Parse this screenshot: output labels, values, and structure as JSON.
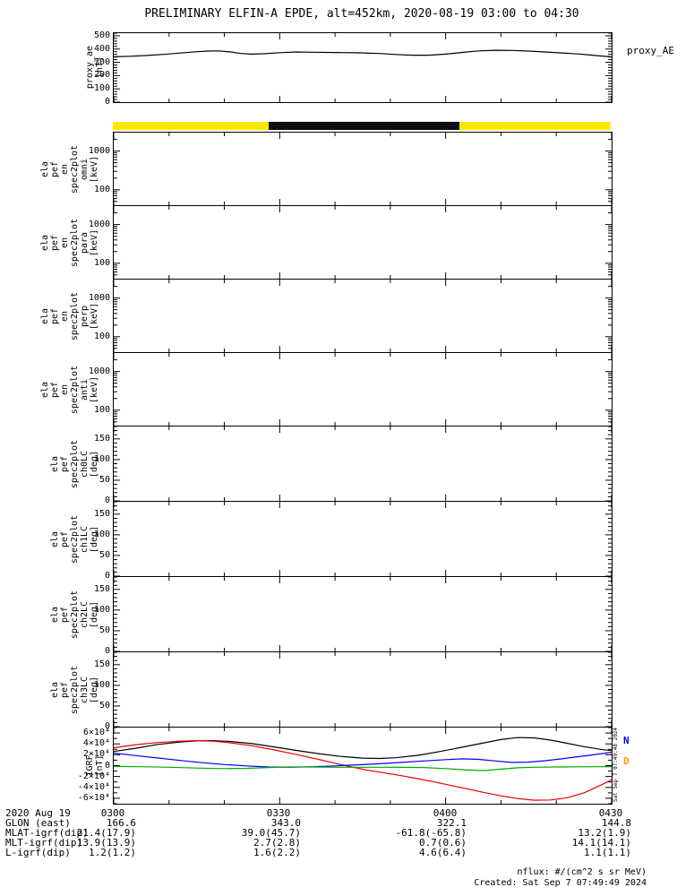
{
  "title": "PRELIMINARY ELFIN-A EPDE, alt=452km, 2020-08-19 03:00 to 04:30",
  "chart_data": {
    "type": "line",
    "title": "PRELIMINARY ELFIN-A EPDE, alt=452km, 2020-08-19 03:00 to 04:30",
    "time": {
      "tick_labels": [
        "0300",
        "0330",
        "0400",
        "0430"
      ],
      "tick_minutes": [
        0,
        30,
        60,
        90
      ],
      "minor_minutes": [
        10,
        20,
        40,
        50,
        70,
        80
      ],
      "range": [
        0,
        90
      ]
    },
    "panels": {
      "proxy": {
        "type": "line",
        "ylabel": "proxy_ae\n[nT]",
        "right_label": "proxy_AE",
        "ylim": [
          0,
          520
        ],
        "yticks": [
          {
            "v": 0,
            "label": "0"
          },
          {
            "v": 100,
            "label": "100"
          },
          {
            "v": 200,
            "label": "200"
          },
          {
            "v": 300,
            "label": "300"
          },
          {
            "v": 400,
            "label": "400"
          },
          {
            "v": 500,
            "label": "500"
          }
        ],
        "yminor_step": 20,
        "series": [
          {
            "name": "proxy_AE",
            "color": "#000000",
            "points": [
              [
                0,
                342
              ],
              [
                3,
                346
              ],
              [
                6,
                352
              ],
              [
                9,
                360
              ],
              [
                12,
                370
              ],
              [
                15,
                380
              ],
              [
                17,
                385
              ],
              [
                19,
                386
              ],
              [
                21,
                379
              ],
              [
                23,
                367
              ],
              [
                25,
                362
              ],
              [
                27,
                365
              ],
              [
                30,
                373
              ],
              [
                33,
                378
              ],
              [
                36,
                376
              ],
              [
                40,
                374
              ],
              [
                44,
                372
              ],
              [
                48,
                367
              ],
              [
                51,
                359
              ],
              [
                54,
                354
              ],
              [
                57,
                354
              ],
              [
                60,
                362
              ],
              [
                63,
                375
              ],
              [
                66,
                386
              ],
              [
                69,
                391
              ],
              [
                72,
                390
              ],
              [
                75,
                385
              ],
              [
                78,
                378
              ],
              [
                81,
                371
              ],
              [
                84,
                363
              ],
              [
                87,
                352
              ],
              [
                90,
                341
              ]
            ]
          }
        ]
      },
      "sunbar": {
        "type": "strip",
        "segments": [
          {
            "from": 0,
            "to": 28.2,
            "color": "#ffe800",
            "state": "sunlit"
          },
          {
            "from": 28.2,
            "to": 62.6,
            "color": "#0d0d14",
            "state": "shadow"
          },
          {
            "from": 62.6,
            "to": 90,
            "color": "#ffe800",
            "state": "sunlit"
          }
        ]
      },
      "omni": {
        "type": "spectrogram",
        "ylabel": "ela\npef\nen\nspec2plot\nomni\n[keV]",
        "yscale": "log",
        "ylim": [
          40,
          3000
        ],
        "yticks": [
          {
            "v": 100,
            "label": "100"
          },
          {
            "v": 1000,
            "label": "1000"
          }
        ],
        "yminor": [
          50,
          60,
          70,
          80,
          90,
          200,
          300,
          400,
          500,
          600,
          700,
          800,
          900,
          2000
        ],
        "series": []
      },
      "para": {
        "type": "spectrogram",
        "ylabel": "ela\npef\nen\nspec2plot\npara\n[keV]",
        "yscale": "log",
        "ylim": [
          40,
          3000
        ],
        "yticks": [
          {
            "v": 100,
            "label": "100"
          },
          {
            "v": 1000,
            "label": "1000"
          }
        ],
        "yminor": [
          50,
          60,
          70,
          80,
          90,
          200,
          300,
          400,
          500,
          600,
          700,
          800,
          900,
          2000
        ],
        "series": []
      },
      "perp": {
        "type": "spectrogram",
        "ylabel": "ela\npef\nen\nspec2plot\nperp\n[keV]",
        "yscale": "log",
        "ylim": [
          40,
          3000
        ],
        "yticks": [
          {
            "v": 100,
            "label": "100"
          },
          {
            "v": 1000,
            "label": "1000"
          }
        ],
        "yminor": [
          50,
          60,
          70,
          80,
          90,
          200,
          300,
          400,
          500,
          600,
          700,
          800,
          900,
          2000
        ],
        "series": []
      },
      "anti": {
        "type": "spectrogram",
        "ylabel": "ela\npef\nen\nspec2plot\nanti\n[keV]",
        "yscale": "log",
        "ylim": [
          40,
          3000
        ],
        "yticks": [
          {
            "v": 100,
            "label": "100"
          },
          {
            "v": 1000,
            "label": "1000"
          }
        ],
        "yminor": [
          50,
          60,
          70,
          80,
          90,
          200,
          300,
          400,
          500,
          600,
          700,
          800,
          900,
          2000
        ],
        "series": []
      },
      "ch0": {
        "type": "line",
        "ylabel": "ela\npef\nspec2plot\nch0LC\n[deg]",
        "ylim": [
          0,
          180
        ],
        "yticks": [
          {
            "v": 0,
            "label": "0"
          },
          {
            "v": 50,
            "label": "50"
          },
          {
            "v": 100,
            "label": "100"
          },
          {
            "v": 150,
            "label": "150"
          }
        ],
        "yminor_step": 10,
        "series": []
      },
      "ch1": {
        "type": "line",
        "ylabel": "ela\npef\nspec2plot\nch1LC\n[deg]",
        "ylim": [
          0,
          180
        ],
        "yticks": [
          {
            "v": 0,
            "label": "0"
          },
          {
            "v": 50,
            "label": "50"
          },
          {
            "v": 100,
            "label": "100"
          },
          {
            "v": 150,
            "label": "150"
          }
        ],
        "yminor_step": 10,
        "series": []
      },
      "ch2": {
        "type": "line",
        "ylabel": "ela\npef\nspec2plot\nch2LC\n[deg]",
        "ylim": [
          0,
          180
        ],
        "yticks": [
          {
            "v": 0,
            "label": "0"
          },
          {
            "v": 50,
            "label": "50"
          },
          {
            "v": 100,
            "label": "100"
          },
          {
            "v": 150,
            "label": "150"
          }
        ],
        "yminor_step": 10,
        "series": []
      },
      "ch3": {
        "type": "line",
        "ylabel": "ela\npef\nspec2plot\nch3LC\n[deg]",
        "ylim": [
          0,
          180
        ],
        "yticks": [
          {
            "v": 0,
            "label": "0"
          },
          {
            "v": 50,
            "label": "50"
          },
          {
            "v": 100,
            "label": "100"
          },
          {
            "v": 150,
            "label": "150"
          }
        ],
        "yminor_step": 10,
        "series": []
      },
      "igrf": {
        "type": "line",
        "ylabel": "IGRF\n[nT]",
        "ylim": [
          -70000,
          70000
        ],
        "yticks": [
          {
            "v": 60000,
            "label": "6×10⁴"
          },
          {
            "v": 40000,
            "label": "4×10⁴"
          },
          {
            "v": 20000,
            "label": "2×10⁴"
          },
          {
            "v": 0,
            "label": "0"
          },
          {
            "v": -20000,
            "label": "-2×10⁴"
          },
          {
            "v": -40000,
            "label": "-4×10⁴"
          },
          {
            "v": -60000,
            "label": "-6×10⁴"
          }
        ],
        "yminor_step": 10000,
        "legend": [
          {
            "label": "N",
            "color": "#0000ff"
          },
          {
            "label": "D",
            "color": "#ff9900"
          }
        ],
        "stamp": "Sat Sep  7 07:49:48 2024",
        "series": [
          {
            "name": "black",
            "color": "#000000",
            "points": [
              [
                0,
                26000
              ],
              [
                4,
                32000
              ],
              [
                8,
                39000
              ],
              [
                12,
                43500
              ],
              [
                15,
                45500
              ],
              [
                18,
                46000
              ],
              [
                21,
                44500
              ],
              [
                25,
                40500
              ],
              [
                29,
                34500
              ],
              [
                33,
                28000
              ],
              [
                37,
                22000
              ],
              [
                41,
                17000
              ],
              [
                45,
                13800
              ],
              [
                48,
                13200
              ],
              [
                51,
                14500
              ],
              [
                55,
                19000
              ],
              [
                59,
                26000
              ],
              [
                63,
                34000
              ],
              [
                67,
                42000
              ],
              [
                70,
                48000
              ],
              [
                73,
                51500
              ],
              [
                76,
                51000
              ],
              [
                79,
                47000
              ],
              [
                82,
                41000
              ],
              [
                85,
                35000
              ],
              [
                88,
                30000
              ],
              [
                90,
                27500
              ]
            ]
          },
          {
            "name": "red",
            "color": "#ee0000",
            "points": [
              [
                0,
                33000
              ],
              [
                4,
                38500
              ],
              [
                8,
                42500
              ],
              [
                12,
                45000
              ],
              [
                15,
                46000
              ],
              [
                18,
                45000
              ],
              [
                21,
                42000
              ],
              [
                25,
                36500
              ],
              [
                29,
                29000
              ],
              [
                33,
                20500
              ],
              [
                37,
                11500
              ],
              [
                40,
                4500
              ],
              [
                43,
                -2500
              ],
              [
                46,
                -8500
              ],
              [
                49,
                -13500
              ],
              [
                52,
                -18500
              ],
              [
                55,
                -24000
              ],
              [
                58,
                -30000
              ],
              [
                61,
                -36500
              ],
              [
                64,
                -43000
              ],
              [
                67,
                -49500
              ],
              [
                70,
                -55500
              ],
              [
                73,
                -60500
              ],
              [
                76,
                -63500
              ],
              [
                79,
                -63000
              ],
              [
                82,
                -59000
              ],
              [
                85,
                -50000
              ],
              [
                88,
                -36000
              ],
              [
                90,
                -26000
              ]
            ]
          },
          {
            "name": "blue",
            "color": "#0000ff",
            "points": [
              [
                0,
                23000
              ],
              [
                4,
                18500
              ],
              [
                8,
                14000
              ],
              [
                12,
                9500
              ],
              [
                16,
                5500
              ],
              [
                20,
                2000
              ],
              [
                24,
                -500
              ],
              [
                28,
                -2500
              ],
              [
                32,
                -3000
              ],
              [
                36,
                -2000
              ],
              [
                40,
                -500
              ],
              [
                44,
                1500
              ],
              [
                48,
                3500
              ],
              [
                52,
                6000
              ],
              [
                56,
                8500
              ],
              [
                60,
                11000
              ],
              [
                63,
                12500
              ],
              [
                66,
                11500
              ],
              [
                69,
                8500
              ],
              [
                72,
                6000
              ],
              [
                75,
                6500
              ],
              [
                78,
                9000
              ],
              [
                81,
                12500
              ],
              [
                84,
                16500
              ],
              [
                87,
                20500
              ],
              [
                90,
                24500
              ]
            ]
          },
          {
            "name": "green",
            "color": "#00aa00",
            "points": [
              [
                0,
                -1500
              ],
              [
                5,
                -2000
              ],
              [
                10,
                -3000
              ],
              [
                15,
                -4500
              ],
              [
                20,
                -5500
              ],
              [
                24,
                -5000
              ],
              [
                28,
                -3500
              ],
              [
                32,
                -2500
              ],
              [
                36,
                -2500
              ],
              [
                40,
                -3000
              ],
              [
                44,
                -3000
              ],
              [
                48,
                -3000
              ],
              [
                52,
                -3200
              ],
              [
                56,
                -3500
              ],
              [
                60,
                -5500
              ],
              [
                64,
                -8000
              ],
              [
                67,
                -9000
              ],
              [
                70,
                -6500
              ],
              [
                73,
                -4000
              ],
              [
                76,
                -3000
              ],
              [
                80,
                -2500
              ],
              [
                84,
                -2200
              ],
              [
                87,
                -2000
              ],
              [
                90,
                -1800
              ]
            ]
          }
        ]
      }
    }
  },
  "footer": {
    "date_label": "2020 Aug 19",
    "time_ticks": [
      "0300",
      "0330",
      "0400",
      "0430"
    ],
    "rows": [
      {
        "label": "GLON (east)",
        "values": [
          "166.6",
          "343.0",
          "322.1",
          "144.8"
        ]
      },
      {
        "label": "MLAT-igrf(dip)",
        "values": [
          "21.4(17.9)",
          "39.0(45.7)",
          "-61.8(-65.8)",
          "13.2(1.9)"
        ]
      },
      {
        "label": "MLT-igrf(dip)",
        "values": [
          "13.9(13.9)",
          "2.7(2.8)",
          "0.7(0.6)",
          "14.1(14.1)"
        ]
      },
      {
        "label": "L-igrf(dip)",
        "values": [
          "1.2(1.2)",
          "1.6(2.2)",
          "4.6(6.4)",
          "1.1(1.1)"
        ]
      }
    ],
    "notes": [
      "nflux: #/(cm^2 s sr MeV)",
      "Created: Sat Sep  7 07:49:49 2024"
    ]
  }
}
